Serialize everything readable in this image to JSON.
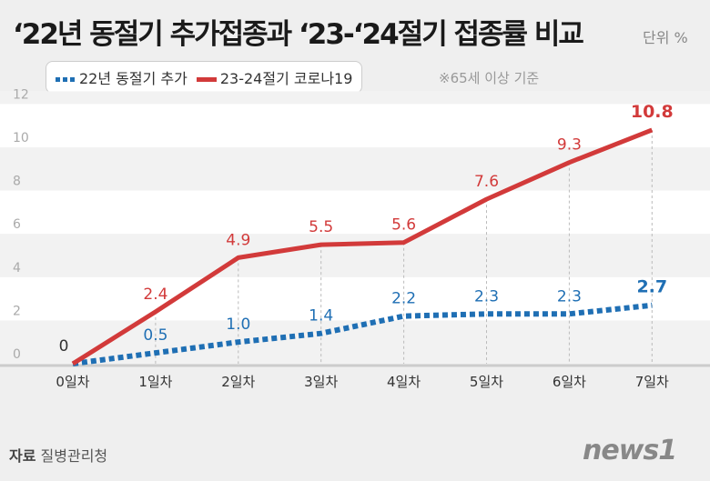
{
  "title": "‘22년 동절기 추가접종과 ‘23-‘24절기 접종률 비교",
  "unit": "단위 %",
  "note": "※65세 이상 기준",
  "source": {
    "label": "자료",
    "value": "질병관리청"
  },
  "logo": "news1",
  "chart_data": {
    "type": "line",
    "categories": [
      "0일차",
      "1일차",
      "2일차",
      "3일차",
      "4일차",
      "5일차",
      "6일차",
      "7일차"
    ],
    "ylim": [
      0,
      12
    ],
    "yticks": [
      0,
      2,
      4,
      6,
      8,
      10,
      12
    ],
    "grid": "horizontal bands",
    "legend_placement": "top-left",
    "series": [
      {
        "name": "22년 동절기 추가",
        "values": [
          0,
          0.5,
          1.0,
          1.4,
          2.2,
          2.3,
          2.3,
          2.7
        ],
        "labels": [
          "",
          "0.5",
          "1.0",
          "1.4",
          "2.2",
          "2.3",
          "2.3",
          "2.7"
        ],
        "color": "#1f6fb4",
        "style": "dotted"
      },
      {
        "name": "23-24절기 코로나19",
        "values": [
          0,
          2.4,
          4.9,
          5.5,
          5.6,
          7.6,
          9.3,
          10.8
        ],
        "labels": [
          "0",
          "2.4",
          "4.9",
          "5.5",
          "5.6",
          "7.6",
          "9.3",
          "10.8"
        ],
        "color": "#d23a3a",
        "style": "solid"
      }
    ]
  }
}
